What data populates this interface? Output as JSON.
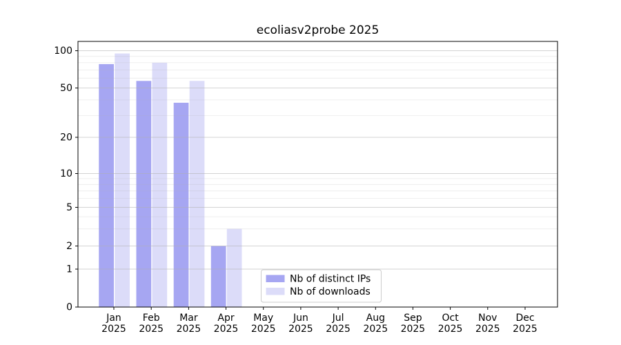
{
  "chart_data": {
    "type": "bar",
    "title": "ecoliasv2probe 2025",
    "categories": [
      "Jan",
      "Feb",
      "Mar",
      "Apr",
      "May",
      "Jun",
      "Jul",
      "Aug",
      "Sep",
      "Oct",
      "Nov",
      "Dec"
    ],
    "category_year": "2025",
    "series": [
      {
        "name": "Nb of distinct IPs",
        "color": "#a6a6f2",
        "values": [
          78,
          57,
          38,
          2,
          0,
          0,
          0,
          0,
          0,
          0,
          0,
          0
        ]
      },
      {
        "name": "Nb of downloads",
        "color": "#dcdcf9",
        "values": [
          95,
          80,
          57,
          3,
          0,
          0,
          0,
          0,
          0,
          0,
          0,
          0
        ]
      }
    ],
    "y_axis": {
      "scale": "symlog",
      "ticks": [
        0,
        1,
        2,
        5,
        10,
        20,
        50,
        100
      ],
      "range": [
        0,
        100
      ]
    },
    "x_axis": {
      "tick_label_lines": 2
    },
    "legend": {
      "position": "lower center inside plot",
      "entries": [
        "Nb of distinct IPs",
        "Nb of downloads"
      ]
    },
    "grid": {
      "major": true,
      "minor": true
    },
    "colors": {
      "background": "#ffffff",
      "spine": "#000000",
      "grid_major": "#b0b0b0",
      "grid_minor": "#b0b0b0"
    }
  }
}
